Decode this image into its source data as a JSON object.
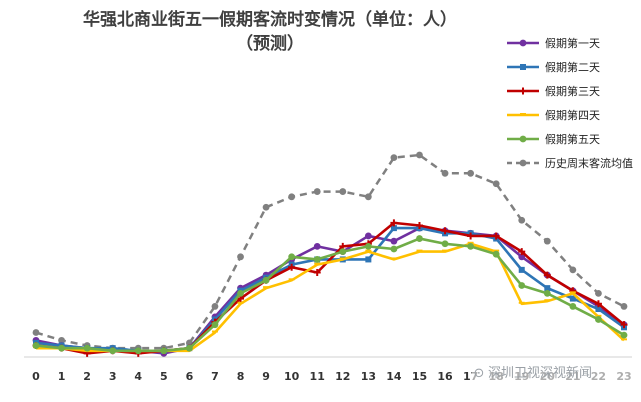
{
  "chart_data": {
    "type": "line",
    "title": "华强北商业街五一假期客流时变情况（单位：人）",
    "subtitle": "（预测）",
    "x": [
      0,
      1,
      2,
      3,
      4,
      5,
      6,
      7,
      8,
      9,
      10,
      11,
      12,
      13,
      14,
      15,
      16,
      17,
      18,
      19,
      20,
      21,
      22,
      23
    ],
    "xticks": [
      "0",
      "1",
      "2",
      "3",
      "4",
      "5",
      "6",
      "7",
      "8",
      "9",
      "10",
      "11",
      "12",
      "13",
      "14",
      "15",
      "16",
      "17",
      "18",
      "19",
      "20",
      "21",
      "22",
      "23"
    ],
    "xlabel": "",
    "ylabel": "",
    "ylim": [
      0,
      100
    ],
    "grid": false,
    "legend_position": "right",
    "series": [
      {
        "name": "假期第一天",
        "color": "#7030A0",
        "dash": false,
        "values": [
          6,
          4,
          3,
          2,
          2,
          1,
          3,
          15,
          26,
          31,
          37,
          42,
          40,
          46,
          44,
          49,
          48,
          47,
          46,
          38,
          31,
          25,
          19,
          12
        ]
      },
      {
        "name": "假期第二天",
        "color": "#2E75B6",
        "dash": false,
        "values": [
          5,
          4,
          3,
          3,
          2,
          2,
          3,
          14,
          25,
          30,
          35,
          37,
          37,
          37,
          49,
          49,
          47,
          47,
          45,
          33,
          26,
          22,
          18,
          11
        ]
      },
      {
        "name": "假期第三天",
        "color": "#C00000",
        "dash": false,
        "values": [
          4,
          3,
          1,
          2,
          1,
          2,
          3,
          13,
          22,
          29,
          34,
          32,
          42,
          43,
          51,
          50,
          48,
          46,
          46,
          40,
          31,
          25,
          20,
          12
        ]
      },
      {
        "name": "假期第四天",
        "color": "#FFC000",
        "dash": false,
        "values": [
          3,
          3,
          2,
          2,
          2,
          2,
          2,
          9,
          20,
          26,
          29,
          35,
          37,
          40,
          37,
          40,
          40,
          43,
          40,
          20,
          21,
          24,
          15,
          6
        ]
      },
      {
        "name": "假期第五天",
        "color": "#70AD47",
        "dash": false,
        "values": [
          4,
          3,
          3,
          2,
          2,
          2,
          3,
          12,
          24,
          29,
          38,
          37,
          40,
          42,
          41,
          45,
          43,
          42,
          39,
          27,
          24,
          19,
          14,
          8
        ]
      },
      {
        "name": "历史周末客流均值",
        "color": "#808080",
        "dash": true,
        "values": [
          9,
          6,
          4,
          3,
          3,
          3,
          5,
          19,
          38,
          57,
          61,
          63,
          63,
          61,
          76,
          77,
          70,
          70,
          66,
          52,
          44,
          33,
          24,
          19
        ]
      }
    ]
  },
  "watermark": {
    "icon": "wechat-icon",
    "text": "深圳卫视深视新闻"
  }
}
